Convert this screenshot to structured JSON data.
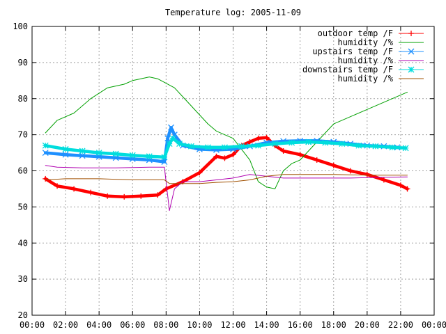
{
  "chart_data": {
    "type": "line",
    "title": "Temperature log: 2005-11-09",
    "xlabel": "",
    "ylabel": "",
    "xlim": [
      0,
      24
    ],
    "ylim": [
      20,
      100
    ],
    "x_ticks": [
      "00:00",
      "02:00",
      "04:00",
      "06:00",
      "08:00",
      "10:00",
      "12:00",
      "14:00",
      "16:00",
      "18:00",
      "20:00",
      "22:00",
      "00:00"
    ],
    "y_ticks": [
      "20",
      "30",
      "40",
      "50",
      "60",
      "70",
      "80",
      "90",
      "100"
    ],
    "grid": true,
    "legend_position": "top-right",
    "series": [
      {
        "name": "outdoor temp /F",
        "color": "#ff0000",
        "marker": "plus",
        "points": [
          [
            0.8,
            57.8
          ],
          [
            1.5,
            55.8
          ],
          [
            2.5,
            55.0
          ],
          [
            3.5,
            54.0
          ],
          [
            4.5,
            53.0
          ],
          [
            5.5,
            52.8
          ],
          [
            6.5,
            53.0
          ],
          [
            7.5,
            53.3
          ],
          [
            8.0,
            55.0
          ],
          [
            9.0,
            57.0
          ],
          [
            10.0,
            59.5
          ],
          [
            11.0,
            64.0
          ],
          [
            11.5,
            63.5
          ],
          [
            12.0,
            64.5
          ],
          [
            12.5,
            67.0
          ],
          [
            13.0,
            68.0
          ],
          [
            13.5,
            69.0
          ],
          [
            14.0,
            69.2
          ],
          [
            14.5,
            67.0
          ],
          [
            15.0,
            65.5
          ],
          [
            16.0,
            64.5
          ],
          [
            17.0,
            63.0
          ],
          [
            18.0,
            61.5
          ],
          [
            19.0,
            60.0
          ],
          [
            20.0,
            59.0
          ],
          [
            21.0,
            57.5
          ],
          [
            22.0,
            56.0
          ],
          [
            22.4,
            55.0
          ]
        ]
      },
      {
        "name": "humidity /%",
        "color": "#00a000",
        "marker": "",
        "points": [
          [
            0.8,
            70.5
          ],
          [
            1.5,
            74.0
          ],
          [
            2.5,
            76.0
          ],
          [
            3.5,
            80.0
          ],
          [
            4.5,
            83.0
          ],
          [
            5.5,
            84.0
          ],
          [
            6.0,
            85.0
          ],
          [
            7.0,
            86.0
          ],
          [
            7.5,
            85.5
          ],
          [
            8.5,
            83.0
          ],
          [
            9.5,
            78.0
          ],
          [
            10.5,
            73.0
          ],
          [
            11.0,
            71.0
          ],
          [
            12.0,
            69.0
          ],
          [
            13.0,
            63.0
          ],
          [
            13.5,
            57.0
          ],
          [
            14.0,
            55.5
          ],
          [
            14.5,
            55.0
          ],
          [
            15.0,
            60.0
          ],
          [
            15.5,
            62.0
          ],
          [
            16.0,
            63.0
          ],
          [
            17.0,
            68.0
          ],
          [
            18.0,
            73.0
          ],
          [
            19.0,
            75.0
          ],
          [
            20.0,
            77.0
          ],
          [
            21.0,
            79.0
          ],
          [
            22.0,
            81.0
          ],
          [
            22.4,
            81.8
          ]
        ]
      },
      {
        "name": "upstairs temp /F",
        "color": "#1e90ff",
        "marker": "x",
        "points": [
          [
            0.8,
            65.0
          ],
          [
            2.0,
            64.5
          ],
          [
            3.0,
            64.2
          ],
          [
            4.0,
            63.9
          ],
          [
            5.0,
            63.6
          ],
          [
            6.0,
            63.3
          ],
          [
            7.0,
            63.0
          ],
          [
            7.9,
            62.5
          ],
          [
            8.1,
            69.0
          ],
          [
            8.3,
            72.0
          ],
          [
            8.5,
            70.0
          ],
          [
            9.0,
            67.0
          ],
          [
            10.0,
            66.0
          ],
          [
            11.0,
            65.8
          ],
          [
            12.0,
            66.0
          ],
          [
            13.0,
            66.8
          ],
          [
            14.0,
            67.8
          ],
          [
            15.0,
            68.2
          ],
          [
            16.0,
            68.3
          ],
          [
            17.0,
            68.3
          ],
          [
            18.0,
            68.0
          ],
          [
            19.0,
            67.5
          ],
          [
            20.0,
            67.0
          ],
          [
            21.0,
            66.8
          ],
          [
            21.8,
            66.5
          ]
        ]
      },
      {
        "name": "humidity /%",
        "color": "#b000b0",
        "marker": "",
        "points": [
          [
            0.8,
            61.5
          ],
          [
            1.5,
            61.0
          ],
          [
            3.0,
            60.8
          ],
          [
            5.0,
            60.8
          ],
          [
            7.0,
            61.0
          ],
          [
            7.9,
            61.0
          ],
          [
            8.2,
            49.0
          ],
          [
            8.5,
            55.0
          ],
          [
            9.0,
            57.0
          ],
          [
            10.0,
            57.0
          ],
          [
            11.0,
            57.5
          ],
          [
            12.0,
            58.0
          ],
          [
            13.0,
            59.0
          ],
          [
            14.0,
            58.5
          ],
          [
            15.0,
            58.0
          ],
          [
            17.0,
            58.0
          ],
          [
            19.0,
            58.0
          ],
          [
            21.0,
            58.2
          ],
          [
            22.4,
            58.3
          ]
        ]
      },
      {
        "name": "downstairs temp /F",
        "color": "#00dddd",
        "marker": "asterisk",
        "points": [
          [
            0.8,
            67.0
          ],
          [
            2.0,
            66.0
          ],
          [
            3.0,
            65.5
          ],
          [
            4.0,
            65.0
          ],
          [
            5.0,
            64.7
          ],
          [
            6.0,
            64.3
          ],
          [
            7.0,
            64.0
          ],
          [
            7.9,
            63.8
          ],
          [
            8.2,
            67.5
          ],
          [
            8.4,
            69.0
          ],
          [
            8.8,
            67.5
          ],
          [
            9.5,
            66.8
          ],
          [
            10.5,
            66.5
          ],
          [
            11.5,
            66.5
          ],
          [
            12.5,
            66.8
          ],
          [
            13.5,
            67.0
          ],
          [
            14.5,
            67.5
          ],
          [
            15.5,
            67.8
          ],
          [
            16.5,
            68.0
          ],
          [
            17.5,
            67.8
          ],
          [
            18.5,
            67.5
          ],
          [
            19.5,
            67.0
          ],
          [
            20.5,
            66.8
          ],
          [
            21.5,
            66.5
          ],
          [
            22.3,
            66.3
          ]
        ]
      },
      {
        "name": "humidity /%",
        "color": "#a05000",
        "marker": "",
        "points": [
          [
            0.8,
            57.5
          ],
          [
            2.0,
            57.8
          ],
          [
            4.0,
            57.8
          ],
          [
            6.0,
            57.5
          ],
          [
            7.9,
            57.5
          ],
          [
            8.2,
            56.5
          ],
          [
            9.0,
            56.5
          ],
          [
            10.0,
            56.5
          ],
          [
            11.0,
            56.8
          ],
          [
            12.0,
            57.0
          ],
          [
            13.0,
            57.5
          ],
          [
            14.0,
            58.5
          ],
          [
            15.0,
            59.0
          ],
          [
            16.0,
            59.0
          ],
          [
            18.0,
            59.0
          ],
          [
            20.0,
            58.8
          ],
          [
            21.0,
            58.8
          ],
          [
            22.4,
            58.8
          ]
        ]
      }
    ]
  }
}
